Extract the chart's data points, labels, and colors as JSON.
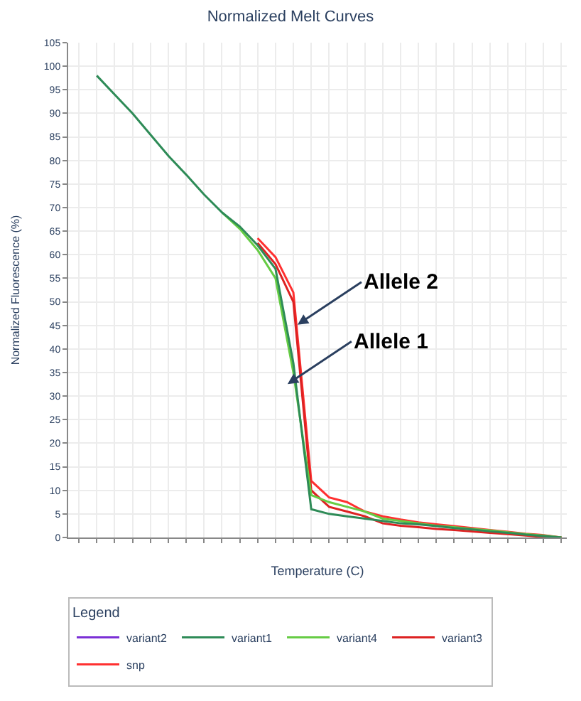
{
  "chart_data": {
    "type": "line",
    "title": "Normalized Melt Curves",
    "xlabel": "Temperature (C)",
    "ylabel": "Normalized Fluorescence (%)",
    "legend_title": "Legend",
    "categories": [
      null,
      null,
      null,
      null,
      null,
      null,
      null,
      null,
      null,
      null,
      null,
      null,
      null,
      null,
      null,
      null,
      null,
      null,
      null,
      null,
      null,
      null,
      null,
      null,
      null,
      null,
      null,
      null
    ],
    "series": [
      {
        "name": "variant2",
        "color": "#7b2fd6",
        "values": [
          null,
          null,
          null,
          null,
          null,
          null,
          null,
          null,
          null,
          null,
          null,
          null,
          null,
          null,
          null,
          null,
          null,
          null,
          null,
          null,
          null,
          null,
          null,
          null,
          null,
          null,
          null,
          null
        ]
      },
      {
        "name": "variant1",
        "color": "#2e8b57",
        "values": [
          null,
          98,
          94,
          90,
          85.5,
          81,
          77,
          72.8,
          69,
          66,
          62,
          57,
          37,
          6,
          5,
          4.5,
          4,
          3.5,
          3,
          2.8,
          2.4,
          2,
          1.7,
          1.3,
          1,
          0.6,
          0.3,
          0
        ]
      },
      {
        "name": "variant4",
        "color": "#66cc44",
        "values": [
          null,
          null,
          null,
          null,
          null,
          null,
          null,
          null,
          69,
          65.5,
          61,
          55,
          35,
          9,
          7.5,
          6.5,
          5.5,
          4,
          3.5,
          3,
          2.5,
          2.2,
          1.8,
          1.5,
          1.1,
          0.7,
          0.4,
          0
        ]
      },
      {
        "name": "variant3",
        "color": "#dd2222",
        "values": [
          null,
          null,
          null,
          null,
          null,
          null,
          null,
          null,
          null,
          null,
          62.5,
          58,
          50,
          10,
          6.5,
          5.5,
          4.5,
          3,
          2.5,
          2.2,
          1.8,
          1.6,
          1.3,
          1,
          0.7,
          0.4,
          0.1,
          0
        ]
      },
      {
        "name": "snp",
        "color": "#ff3030",
        "values": [
          null,
          null,
          null,
          null,
          null,
          null,
          null,
          null,
          null,
          null,
          63.5,
          59.5,
          52,
          12,
          8.5,
          7.5,
          5.5,
          4.5,
          3.8,
          3.2,
          2.8,
          2.4,
          2,
          1.6,
          1.2,
          0.8,
          0.5,
          0
        ]
      }
    ],
    "annotations": [
      "Allele 2",
      "Allele 1"
    ],
    "ylim": [
      0,
      105
    ],
    "yticks": [
      0,
      5,
      10,
      15,
      20,
      25,
      30,
      35,
      40,
      45,
      50,
      55,
      60,
      65,
      70,
      75,
      80,
      85,
      90,
      95,
      100,
      105
    ],
    "grid": true,
    "legend": "bottom",
    "marker": "none",
    "line_style": "solid"
  }
}
